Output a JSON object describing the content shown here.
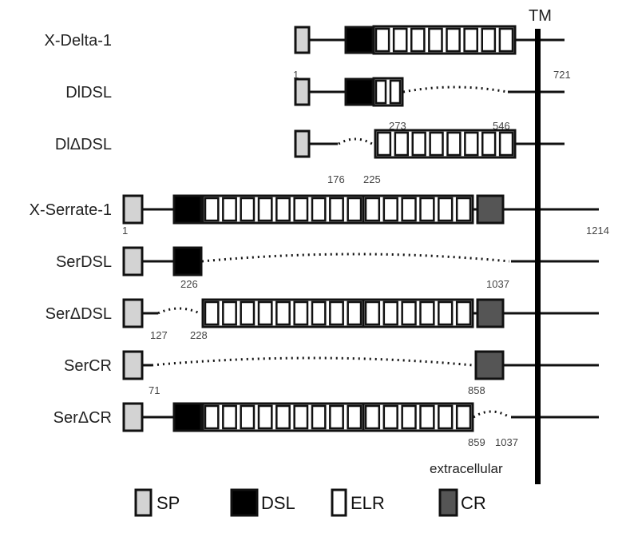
{
  "membrane_label": "TM",
  "extracellular_label": "extracellular",
  "colors": {
    "SP": "#d3d3d3",
    "DSL": "#000000",
    "ELR": "#ffffff",
    "CR": "#555555",
    "outline": "#111111"
  },
  "rows": [
    {
      "name": "X-Delta-1",
      "numbers": [
        "1",
        "721"
      ]
    },
    {
      "name": "DlDSL",
      "numbers": [
        "273",
        "546"
      ]
    },
    {
      "name": "DlΔDSL",
      "numbers": [
        "176",
        "225"
      ]
    },
    {
      "name": "X-Serrate-1",
      "numbers": [
        "1",
        "1214"
      ]
    },
    {
      "name": "SerDSL",
      "numbers": [
        "226",
        "1037"
      ]
    },
    {
      "name": "SerΔDSL",
      "numbers": [
        "127",
        "228"
      ]
    },
    {
      "name": "SerCR",
      "numbers": [
        "71",
        "858"
      ]
    },
    {
      "name": "SerΔCR",
      "numbers": [
        "859",
        "1037"
      ]
    }
  ],
  "legend": [
    {
      "key": "SP",
      "label": "SP"
    },
    {
      "key": "DSL",
      "label": "DSL"
    },
    {
      "key": "ELR",
      "label": "ELR"
    },
    {
      "key": "CR",
      "label": "CR"
    }
  ]
}
